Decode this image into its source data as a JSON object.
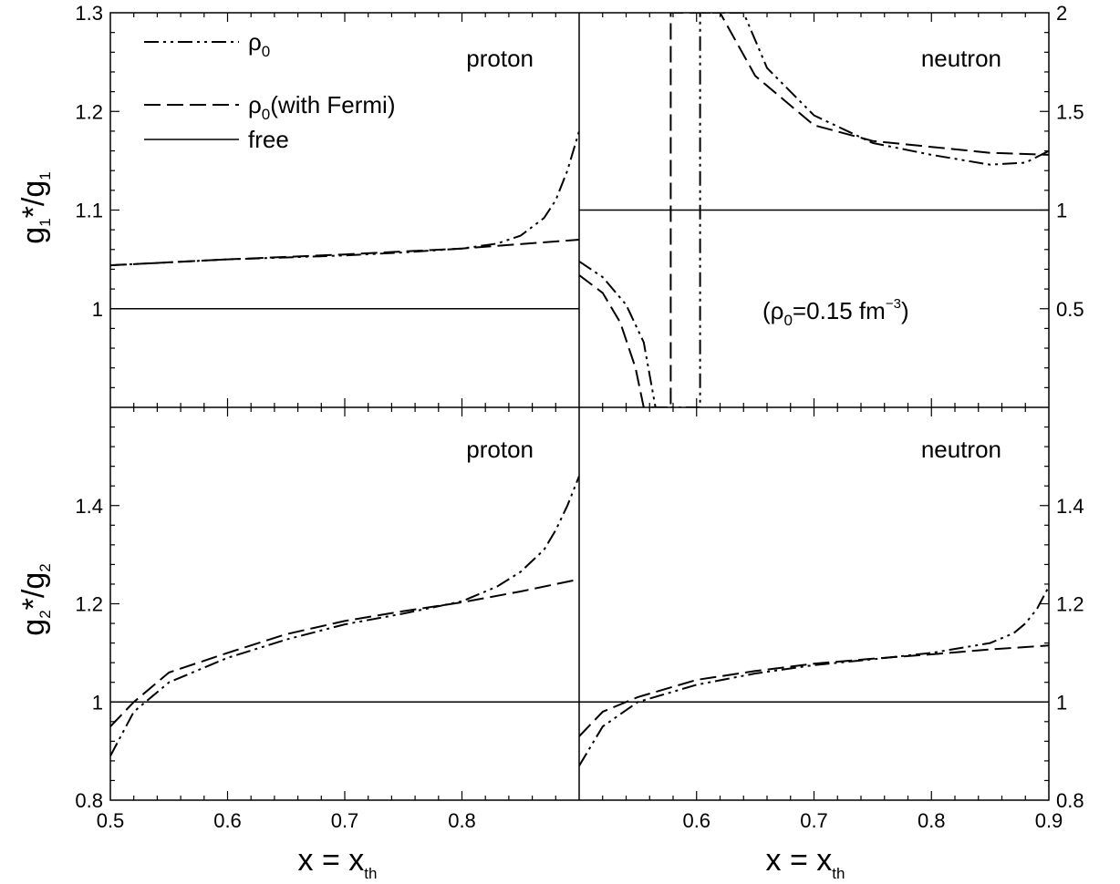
{
  "chart_data": [
    {
      "type": "line",
      "panel": "top-left",
      "label": "proton",
      "ylabel": {
        "main": "g",
        "sub1": "1",
        "mid": "*/g",
        "sub2": "1"
      },
      "xlim": [
        0.5,
        0.9
      ],
      "ylim": [
        0.9,
        1.3
      ],
      "yticks": [
        "1",
        "1.1",
        "1.2",
        "1.3"
      ],
      "series": [
        {
          "name": "ρ0",
          "style": "dashdot",
          "x": [
            0.5,
            0.55,
            0.6,
            0.65,
            0.7,
            0.75,
            0.8,
            0.83,
            0.85,
            0.87,
            0.88,
            0.89,
            0.9
          ],
          "y": [
            1.044,
            1.047,
            1.05,
            1.052,
            1.054,
            1.057,
            1.061,
            1.066,
            1.074,
            1.092,
            1.11,
            1.14,
            1.18
          ]
        },
        {
          "name": "ρ0 (with Fermi)",
          "style": "dash",
          "x": [
            0.5,
            0.6,
            0.7,
            0.8,
            0.9
          ],
          "y": [
            1.044,
            1.05,
            1.055,
            1.061,
            1.07
          ]
        },
        {
          "name": "free",
          "style": "solid",
          "x": [
            0.5,
            0.9
          ],
          "y": [
            1.0,
            1.0
          ]
        }
      ]
    },
    {
      "type": "line",
      "panel": "top-right",
      "label": "neutron",
      "xlim": [
        0.5,
        0.9
      ],
      "ylim": [
        0,
        2
      ],
      "yticks": [
        "0.5",
        "1",
        "1.5",
        "2"
      ],
      "annotation": {
        "prefix": "(ρ",
        "sub": "0",
        "middle": "=0.15 fm",
        "sup": "−3",
        "suffix": ")"
      },
      "series": [
        {
          "name": "ρ0",
          "style": "dashdot",
          "x": [
            0.5,
            0.52,
            0.54,
            0.555,
            0.565,
            0.603,
            0.603,
            0.64,
            0.66,
            0.7,
            0.75,
            0.8,
            0.85,
            0.88,
            0.9
          ],
          "y": [
            0.74,
            0.66,
            0.52,
            0.33,
            0.0,
            0.0,
            2.0,
            2.0,
            1.72,
            1.48,
            1.34,
            1.28,
            1.23,
            1.24,
            1.3
          ]
        },
        {
          "name": "ρ0 (with Fermi)",
          "style": "dash",
          "x": [
            0.5,
            0.52,
            0.535,
            0.548,
            0.555,
            0.578,
            0.578,
            0.62,
            0.65,
            0.7,
            0.75,
            0.8,
            0.85,
            0.9
          ],
          "y": [
            0.67,
            0.58,
            0.43,
            0.2,
            0.0,
            0.0,
            2.0,
            2.0,
            1.68,
            1.43,
            1.35,
            1.32,
            1.29,
            1.28
          ]
        },
        {
          "name": "free",
          "style": "solid",
          "x": [
            0.5,
            0.9
          ],
          "y": [
            1.0,
            1.0
          ]
        }
      ]
    },
    {
      "type": "line",
      "panel": "bottom-left",
      "label": "proton",
      "xlabel": {
        "main": "x = x",
        "sub": "th"
      },
      "ylabel": {
        "main": "g",
        "sub1": "2",
        "mid": "*/g",
        "sub2": "2"
      },
      "xlim": [
        0.5,
        0.9
      ],
      "ylim": [
        0.8,
        1.6
      ],
      "xticks": [
        "0.5",
        "0.6",
        "0.7",
        "0.8"
      ],
      "yticks": [
        "0.8",
        "1",
        "1.2",
        "1.4"
      ],
      "series": [
        {
          "name": "ρ0",
          "style": "dashdot",
          "x": [
            0.5,
            0.52,
            0.55,
            0.6,
            0.65,
            0.7,
            0.75,
            0.8,
            0.83,
            0.85,
            0.87,
            0.88,
            0.89,
            0.9
          ],
          "y": [
            0.89,
            0.98,
            1.04,
            1.09,
            1.127,
            1.158,
            1.18,
            1.205,
            1.235,
            1.265,
            1.31,
            1.35,
            1.4,
            1.46
          ]
        },
        {
          "name": "ρ0 (with Fermi)",
          "style": "dash",
          "x": [
            0.5,
            0.52,
            0.55,
            0.6,
            0.65,
            0.7,
            0.75,
            0.8,
            0.85,
            0.9
          ],
          "y": [
            0.95,
            1.0,
            1.06,
            1.1,
            1.138,
            1.165,
            1.185,
            1.203,
            1.225,
            1.25
          ]
        },
        {
          "name": "free",
          "style": "solid",
          "x": [
            0.5,
            0.9
          ],
          "y": [
            1.0,
            1.0
          ]
        }
      ]
    },
    {
      "type": "line",
      "panel": "bottom-right",
      "label": "neutron",
      "xlabel": {
        "main": "x = x",
        "sub": "th"
      },
      "xlim": [
        0.5,
        0.9
      ],
      "ylim": [
        0.8,
        1.6
      ],
      "xticks": [
        "0.6",
        "0.7",
        "0.8",
        "0.9"
      ],
      "yticks": [
        "0.8",
        "1",
        "1.2",
        "1.4"
      ],
      "series": [
        {
          "name": "ρ0",
          "style": "dashdot",
          "x": [
            0.5,
            0.52,
            0.55,
            0.6,
            0.65,
            0.7,
            0.75,
            0.8,
            0.85,
            0.87,
            0.88,
            0.89,
            0.9
          ],
          "y": [
            0.87,
            0.95,
            1.0,
            1.035,
            1.058,
            1.075,
            1.087,
            1.1,
            1.12,
            1.14,
            1.16,
            1.19,
            1.235
          ]
        },
        {
          "name": "ρ0 (with Fermi)",
          "style": "dash",
          "x": [
            0.5,
            0.52,
            0.55,
            0.6,
            0.65,
            0.7,
            0.75,
            0.8,
            0.85,
            0.9
          ],
          "y": [
            0.93,
            0.98,
            1.01,
            1.045,
            1.063,
            1.078,
            1.088,
            1.097,
            1.107,
            1.115
          ]
        },
        {
          "name": "free",
          "style": "solid",
          "x": [
            0.5,
            0.9
          ],
          "y": [
            1.0,
            1.0
          ]
        }
      ]
    }
  ],
  "legend": {
    "location": "top-left",
    "entries": [
      {
        "style": "dashdot",
        "text_main": "ρ",
        "text_sub": "0",
        "text_suffix": ""
      },
      {
        "style": "dash",
        "text_main": "ρ",
        "text_sub": "0",
        "text_suffix": "(with Fermi)"
      },
      {
        "style": "solid",
        "text_main": "free",
        "text_sub": "",
        "text_suffix": ""
      }
    ]
  },
  "colors": {
    "line": "#000000",
    "background": "#ffffff"
  }
}
